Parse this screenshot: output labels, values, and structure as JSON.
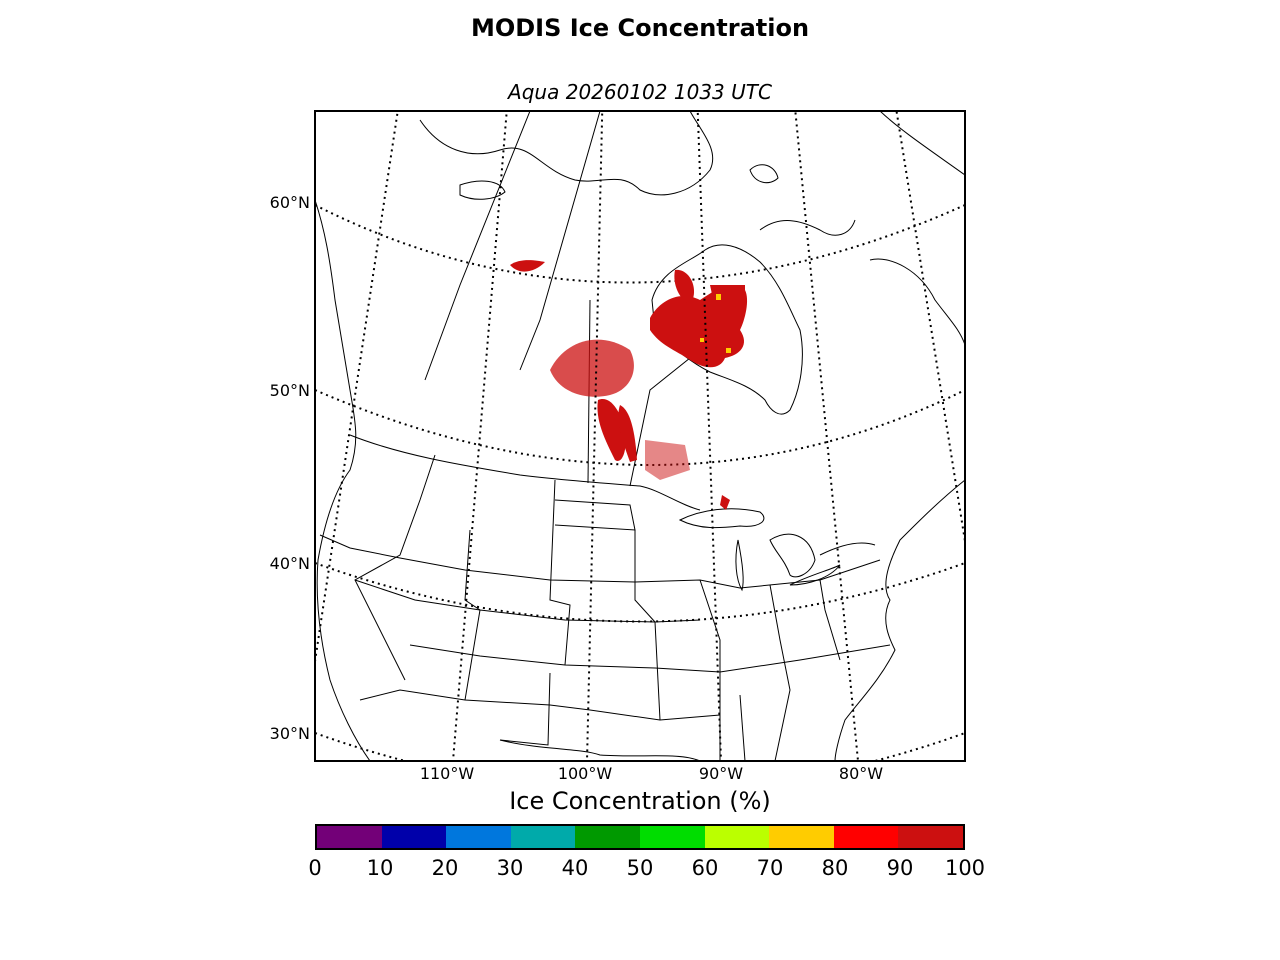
{
  "title": "MODIS Ice Concentration",
  "subtitle": "Aqua 20260102 1033 UTC",
  "map": {
    "lat_labels": [
      "60°N",
      "50°N",
      "40°N",
      "30°N"
    ],
    "lon_labels": [
      "110°W",
      "100°W",
      "90°W",
      "80°W"
    ],
    "ice_color": "#cc1010"
  },
  "colorbar": {
    "title": "Ice Concentration (%)",
    "ticks": [
      "0",
      "10",
      "20",
      "30",
      "40",
      "50",
      "60",
      "70",
      "80",
      "90",
      "100"
    ],
    "colors": [
      "#730078",
      "#0000aa",
      "#0077dd",
      "#00aaaa",
      "#009900",
      "#00dd00",
      "#bbff00",
      "#ffcc00",
      "#ff0000",
      "#cc1010"
    ]
  }
}
